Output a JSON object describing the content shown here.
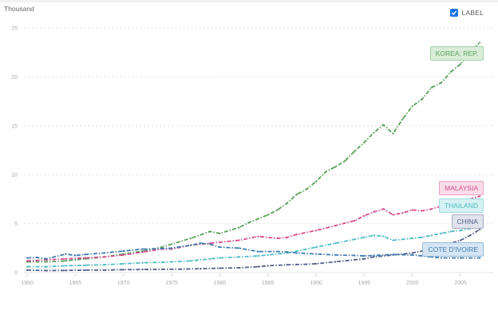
{
  "header": {
    "unit_label": "Thousand",
    "label_toggle": {
      "text": "LABEL",
      "checked": true,
      "icon": "checkbox-checked-icon"
    }
  },
  "chart_data": {
    "type": "line",
    "title": "",
    "xlabel": "",
    "ylabel": "Thousand",
    "xlim": [
      1960,
      2008
    ],
    "ylim": [
      0,
      25
    ],
    "x_ticks": [
      "1960",
      "1965",
      "1970",
      "1975",
      "1980",
      "1985",
      "1990",
      "1995",
      "2000",
      "2005"
    ],
    "y_ticks": [
      "0",
      "5",
      "10",
      "15",
      "20",
      "25"
    ],
    "grid": true,
    "line_style": "dash-dot",
    "series": [
      {
        "name": "KOREA, REP.",
        "color": "#5aa05a",
        "label_bg": "#d9edd9",
        "points": [
          [
            1960,
            1.1
          ],
          [
            1962,
            1.1
          ],
          [
            1964,
            1.2
          ],
          [
            1965,
            1.3
          ],
          [
            1966,
            1.4
          ],
          [
            1968,
            1.6
          ],
          [
            1970,
            1.9
          ],
          [
            1972,
            2.2
          ],
          [
            1974,
            2.6
          ],
          [
            1975,
            2.9
          ],
          [
            1977,
            3.5
          ],
          [
            1979,
            4.2
          ],
          [
            1980,
            4.0
          ],
          [
            1982,
            4.6
          ],
          [
            1983,
            5.1
          ],
          [
            1984,
            5.5
          ],
          [
            1985,
            5.9
          ],
          [
            1986,
            6.4
          ],
          [
            1987,
            7.1
          ],
          [
            1988,
            8.0
          ],
          [
            1989,
            8.5
          ],
          [
            1990,
            9.3
          ],
          [
            1991,
            10.3
          ],
          [
            1992,
            10.8
          ],
          [
            1993,
            11.4
          ],
          [
            1994,
            12.4
          ],
          [
            1995,
            13.3
          ],
          [
            1996,
            14.3
          ],
          [
            1997,
            15.1
          ],
          [
            1998,
            14.2
          ],
          [
            1999,
            15.7
          ],
          [
            2000,
            17.0
          ],
          [
            2001,
            17.7
          ],
          [
            2002,
            18.9
          ],
          [
            2003,
            19.4
          ],
          [
            2004,
            20.5
          ],
          [
            2005,
            21.3
          ],
          [
            2006,
            22.5
          ],
          [
            2007,
            23.5
          ]
        ]
      },
      {
        "name": "MALAYSIA",
        "color": "#d64c8c",
        "label_bg": "#f9dce9",
        "points": [
          [
            1960,
            1.2
          ],
          [
            1962,
            1.3
          ],
          [
            1964,
            1.4
          ],
          [
            1966,
            1.5
          ],
          [
            1968,
            1.6
          ],
          [
            1970,
            1.8
          ],
          [
            1972,
            2.1
          ],
          [
            1974,
            2.4
          ],
          [
            1975,
            2.4
          ],
          [
            1977,
            2.8
          ],
          [
            1979,
            3.0
          ],
          [
            1980,
            3.1
          ],
          [
            1982,
            3.3
          ],
          [
            1984,
            3.7
          ],
          [
            1986,
            3.5
          ],
          [
            1987,
            3.6
          ],
          [
            1988,
            3.9
          ],
          [
            1990,
            4.3
          ],
          [
            1992,
            4.8
          ],
          [
            1994,
            5.3
          ],
          [
            1995,
            5.8
          ],
          [
            1996,
            6.2
          ],
          [
            1997,
            6.5
          ],
          [
            1998,
            5.9
          ],
          [
            1999,
            6.1
          ],
          [
            2000,
            6.4
          ],
          [
            2001,
            6.3
          ],
          [
            2002,
            6.5
          ],
          [
            2003,
            6.8
          ],
          [
            2004,
            7.0
          ],
          [
            2005,
            7.2
          ],
          [
            2006,
            7.5
          ],
          [
            2007,
            7.8
          ]
        ]
      },
      {
        "name": "THAILAND",
        "color": "#4fbcc4",
        "label_bg": "#d6f1f3",
        "points": [
          [
            1960,
            0.6
          ],
          [
            1962,
            0.6
          ],
          [
            1964,
            0.7
          ],
          [
            1966,
            0.75
          ],
          [
            1968,
            0.8
          ],
          [
            1970,
            0.9
          ],
          [
            1972,
            1.0
          ],
          [
            1974,
            1.05
          ],
          [
            1975,
            1.1
          ],
          [
            1977,
            1.2
          ],
          [
            1979,
            1.4
          ],
          [
            1980,
            1.5
          ],
          [
            1982,
            1.6
          ],
          [
            1984,
            1.7
          ],
          [
            1985,
            1.8
          ],
          [
            1987,
            2.0
          ],
          [
            1988,
            2.2
          ],
          [
            1990,
            2.6
          ],
          [
            1992,
            3.0
          ],
          [
            1994,
            3.4
          ],
          [
            1995,
            3.6
          ],
          [
            1996,
            3.8
          ],
          [
            1997,
            3.7
          ],
          [
            1998,
            3.3
          ],
          [
            2000,
            3.5
          ],
          [
            2001,
            3.6
          ],
          [
            2002,
            3.8
          ],
          [
            2003,
            4.0
          ],
          [
            2004,
            4.2
          ],
          [
            2005,
            4.3
          ],
          [
            2006,
            4.5
          ],
          [
            2007,
            4.6
          ]
        ]
      },
      {
        "name": "CHINA",
        "color": "#56608a",
        "label_bg": "#e0e2ec",
        "points": [
          [
            1960,
            0.25
          ],
          [
            1962,
            0.2
          ],
          [
            1964,
            0.22
          ],
          [
            1966,
            0.25
          ],
          [
            1968,
            0.25
          ],
          [
            1970,
            0.3
          ],
          [
            1972,
            0.32
          ],
          [
            1974,
            0.33
          ],
          [
            1976,
            0.35
          ],
          [
            1978,
            0.4
          ],
          [
            1980,
            0.45
          ],
          [
            1982,
            0.5
          ],
          [
            1984,
            0.6
          ],
          [
            1985,
            0.7
          ],
          [
            1987,
            0.8
          ],
          [
            1989,
            0.85
          ],
          [
            1990,
            0.9
          ],
          [
            1992,
            1.1
          ],
          [
            1994,
            1.3
          ],
          [
            1995,
            1.4
          ],
          [
            1996,
            1.6
          ],
          [
            1998,
            1.8
          ],
          [
            2000,
            2.0
          ],
          [
            2001,
            2.2
          ],
          [
            2002,
            2.4
          ],
          [
            2003,
            2.7
          ],
          [
            2004,
            3.0
          ],
          [
            2005,
            3.3
          ],
          [
            2006,
            3.8
          ],
          [
            2007,
            4.4
          ]
        ]
      },
      {
        "name": "COTE D'IVOIRE",
        "color": "#3f7cb0",
        "label_bg": "#d5e5f3",
        "points": [
          [
            1960,
            1.5
          ],
          [
            1961,
            1.55
          ],
          [
            1962,
            1.4
          ],
          [
            1964,
            1.9
          ],
          [
            1965,
            1.75
          ],
          [
            1966,
            1.85
          ],
          [
            1968,
            2.0
          ],
          [
            1970,
            2.2
          ],
          [
            1972,
            2.4
          ],
          [
            1974,
            2.45
          ],
          [
            1975,
            2.5
          ],
          [
            1977,
            2.8
          ],
          [
            1978,
            3.0
          ],
          [
            1979,
            2.9
          ],
          [
            1980,
            2.6
          ],
          [
            1982,
            2.5
          ],
          [
            1984,
            2.15
          ],
          [
            1986,
            2.15
          ],
          [
            1987,
            2.1
          ],
          [
            1988,
            2.0
          ],
          [
            1990,
            1.9
          ],
          [
            1992,
            1.8
          ],
          [
            1994,
            1.75
          ],
          [
            1995,
            1.7
          ],
          [
            1996,
            1.75
          ],
          [
            1998,
            1.85
          ],
          [
            2000,
            1.8
          ],
          [
            2002,
            1.6
          ],
          [
            2003,
            1.5
          ],
          [
            2005,
            1.5
          ],
          [
            2007,
            1.5
          ]
        ]
      }
    ]
  }
}
